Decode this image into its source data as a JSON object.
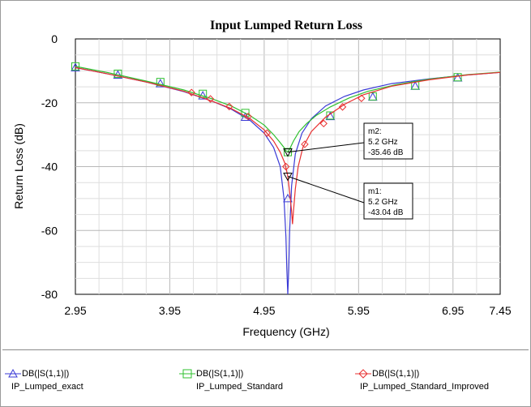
{
  "chart_data": {
    "type": "line",
    "title": "Input Lumped Return Loss",
    "xlabel": "Frequency (GHz)",
    "ylabel": "Return Loss (dB)",
    "xlim": [
      2.95,
      7.45
    ],
    "ylim": [
      -80,
      0
    ],
    "x_ticks": [
      "2.95",
      "3.95",
      "4.95",
      "5.95",
      "6.95",
      "7.45"
    ],
    "x_tick_values": [
      2.95,
      3.95,
      4.95,
      5.95,
      6.95,
      7.45
    ],
    "y_ticks": [
      "0",
      "-20",
      "-40",
      "-60",
      "-80"
    ],
    "y_tick_values": [
      0,
      -20,
      -40,
      -60,
      -80
    ],
    "grid": true,
    "legend_position": "bottom",
    "series": [
      {
        "name": "DB(|S(1,1)|)",
        "sub": "IP_Lumped_exact",
        "color": "#3a3ad6",
        "marker": "triangle-up",
        "x": [
          2.95,
          3.3,
          3.7,
          4.1,
          4.4,
          4.6,
          4.8,
          4.95,
          5.05,
          5.12,
          5.16,
          5.18,
          5.19,
          5.2,
          5.21,
          5.22,
          5.24,
          5.28,
          5.35,
          5.45,
          5.6,
          5.8,
          6.0,
          6.3,
          6.7,
          7.1,
          7.45
        ],
        "y": [
          -9,
          -11,
          -13.5,
          -16.5,
          -19.5,
          -22,
          -25.5,
          -29.5,
          -34,
          -40,
          -50,
          -62,
          -72,
          -80,
          -72,
          -60,
          -46,
          -36,
          -29.5,
          -25,
          -21,
          -18,
          -16,
          -14,
          -12.5,
          -11.3,
          -10.5
        ],
        "markers_x": [
          2.95,
          3.4,
          3.85,
          4.3,
          4.75,
          5.2,
          5.65,
          6.1,
          6.55,
          7.0
        ],
        "markers_y": [
          -9,
          -11.3,
          -14,
          -17.8,
          -24.5,
          -50,
          -24.3,
          -18.2,
          -14.8,
          -12.2
        ]
      },
      {
        "name": "DB(|S(1,1)|)",
        "sub": "IP_Lumped_Standard",
        "color": "#2fc02f",
        "marker": "square",
        "x": [
          2.95,
          3.3,
          3.7,
          4.1,
          4.4,
          4.6,
          4.8,
          4.95,
          5.05,
          5.12,
          5.16,
          5.18,
          5.2,
          5.22,
          5.26,
          5.32,
          5.4,
          5.5,
          5.65,
          5.85,
          6.05,
          6.35,
          6.7,
          7.1,
          7.45
        ],
        "y": [
          -8.6,
          -10.6,
          -13.2,
          -16,
          -18.8,
          -21,
          -24,
          -27,
          -30,
          -32.5,
          -34,
          -35,
          -35.46,
          -34.5,
          -32,
          -29,
          -26.5,
          -24,
          -21.3,
          -18.5,
          -16.4,
          -14.3,
          -12.6,
          -11.2,
          -10.4
        ],
        "markers_x": [
          2.95,
          3.4,
          3.85,
          4.3,
          4.75,
          5.2,
          5.65,
          6.1,
          6.55,
          7.0
        ],
        "markers_y": [
          -8.6,
          -10.9,
          -13.5,
          -17.2,
          -23.2,
          -35.46,
          -24,
          -18,
          -14.6,
          -12
        ]
      },
      {
        "name": "DB(|S(1,1)|)",
        "sub": "IP_Lumped_Standard_Improved",
        "color": "#e83030",
        "marker": "diamond",
        "x": [
          2.95,
          3.3,
          3.7,
          4.1,
          4.4,
          4.6,
          4.8,
          4.95,
          5.05,
          5.12,
          5.17,
          5.2,
          5.22,
          5.24,
          5.25,
          5.26,
          5.28,
          5.31,
          5.36,
          5.45,
          5.6,
          5.8,
          6.0,
          6.3,
          6.7,
          7.1,
          7.45
        ],
        "y": [
          -9,
          -11,
          -13.5,
          -16.4,
          -19.5,
          -21.8,
          -25,
          -28.5,
          -32,
          -35.5,
          -39,
          -43.04,
          -48,
          -54,
          -58,
          -54,
          -47,
          -40,
          -34,
          -29,
          -24.5,
          -20.5,
          -17.5,
          -14.8,
          -12.8,
          -11.3,
          -10.5
        ],
        "markers_x": [
          4.18,
          4.38,
          4.58,
          4.78,
          4.98,
          5.18,
          5.38,
          5.58,
          5.78,
          5.98
        ],
        "markers_y": [
          -16.8,
          -18.8,
          -21.2,
          -24.3,
          -29.5,
          -40,
          -33,
          -26.5,
          -21.3,
          -18.6
        ]
      }
    ],
    "markers": [
      {
        "id": "m2",
        "line1": "m2:",
        "line2": "5.2 GHz",
        "line3": "-35.46 dB",
        "x": 5.2,
        "y": -35.46
      },
      {
        "id": "m1",
        "line1": "m1:",
        "line2": "5.2 GHz",
        "line3": "-43.04 dB",
        "x": 5.2,
        "y": -43.04
      }
    ]
  }
}
